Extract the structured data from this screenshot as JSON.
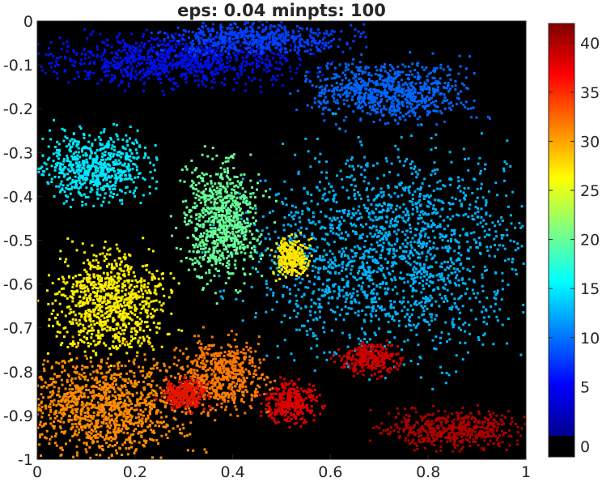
{
  "chart_data": {
    "type": "scatter",
    "title": "eps: 0.04 minpts: 100",
    "xlabel": "",
    "ylabel": "",
    "xlim": [
      0,
      1
    ],
    "ylim": [
      -1,
      0
    ],
    "x_ticks": [
      "0",
      "0.2",
      "0.4",
      "0.6",
      "0.8",
      "1"
    ],
    "x_tick_values": [
      0,
      0.2,
      0.4,
      0.6,
      0.8,
      1
    ],
    "y_ticks": [
      "0",
      "-0.1",
      "-0.2",
      "-0.3",
      "-0.4",
      "-0.5",
      "-0.6",
      "-0.7",
      "-0.8",
      "-0.9",
      "-1"
    ],
    "y_tick_values": [
      0,
      -0.1,
      -0.2,
      -0.3,
      -0.4,
      -0.5,
      -0.6,
      -0.7,
      -0.8,
      -0.9,
      -1
    ],
    "background_color": "#000000",
    "noise_label": 0,
    "colorbar": {
      "ticks": [
        "0",
        "5",
        "10",
        "15",
        "20",
        "25",
        "30",
        "35",
        "40"
      ],
      "tick_values": [
        0,
        5,
        10,
        15,
        20,
        25,
        30,
        35,
        40
      ],
      "range": [
        0,
        42
      ],
      "colormap": "jet"
    },
    "clusters": [
      {
        "label": 2,
        "center": [
          0.28,
          -0.09
        ],
        "spread": [
          0.22,
          0.05
        ],
        "color": "#0010e6"
      },
      {
        "label": 6,
        "center": [
          0.45,
          -0.04
        ],
        "spread": [
          0.16,
          0.03
        ],
        "color": "#0040ff"
      },
      {
        "label": 9,
        "center": [
          0.72,
          -0.16
        ],
        "spread": [
          0.14,
          0.06
        ],
        "color": "#0066ff"
      },
      {
        "label": 13,
        "center": [
          0.73,
          -0.53
        ],
        "spread": [
          0.25,
          0.2
        ],
        "color": "#00b4ff"
      },
      {
        "label": 15,
        "center": [
          0.12,
          -0.33
        ],
        "spread": [
          0.1,
          0.07
        ],
        "color": "#00e6ff"
      },
      {
        "label": 20,
        "center": [
          0.38,
          -0.46
        ],
        "spread": [
          0.07,
          0.12
        ],
        "color": "#66ff99"
      },
      {
        "label": 26,
        "center": [
          0.15,
          -0.64
        ],
        "spread": [
          0.1,
          0.1
        ],
        "color": "#ffee00"
      },
      {
        "label": 25,
        "center": [
          0.52,
          -0.54
        ],
        "spread": [
          0.03,
          0.04
        ],
        "color": "#ffe600"
      },
      {
        "label": 31,
        "center": [
          0.14,
          -0.88
        ],
        "spread": [
          0.14,
          0.1
        ],
        "color": "#ff8c00"
      },
      {
        "label": 32,
        "center": [
          0.38,
          -0.81
        ],
        "spread": [
          0.08,
          0.07
        ],
        "color": "#ff7a00"
      },
      {
        "label": 38,
        "center": [
          0.3,
          -0.85
        ],
        "spread": [
          0.04,
          0.03
        ],
        "color": "#e61500"
      },
      {
        "label": 40,
        "center": [
          0.52,
          -0.87
        ],
        "spread": [
          0.05,
          0.04
        ],
        "color": "#dd0000"
      },
      {
        "label": 41,
        "center": [
          0.68,
          -0.77
        ],
        "spread": [
          0.05,
          0.03
        ],
        "color": "#cc0000"
      },
      {
        "label": 42,
        "center": [
          0.85,
          -0.93
        ],
        "spread": [
          0.12,
          0.04
        ],
        "color": "#aa0000"
      }
    ]
  }
}
